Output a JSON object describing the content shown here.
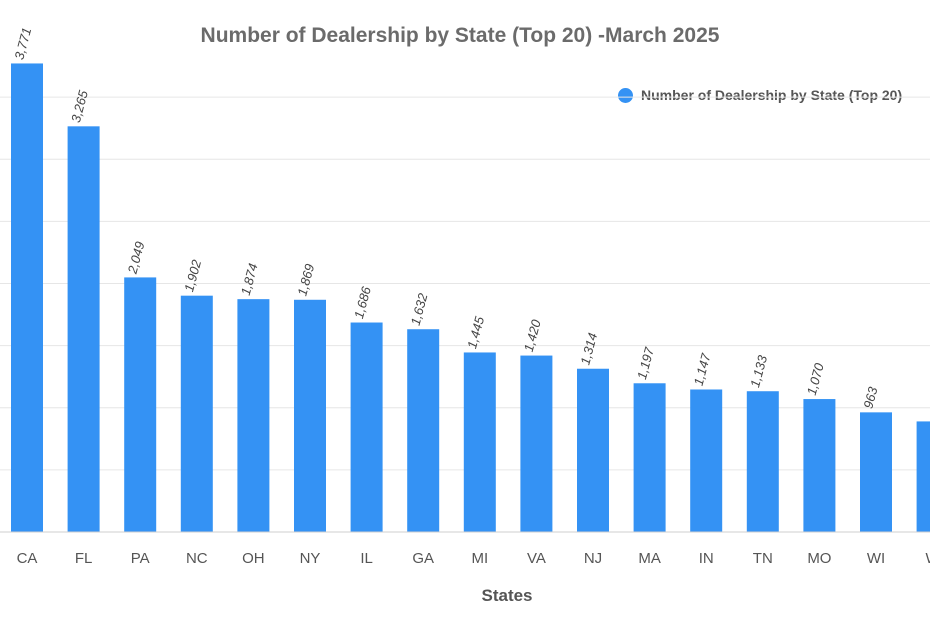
{
  "chart_data": {
    "type": "bar",
    "title": "Number of Dealership by State (Top 20) -March 2025",
    "xlabel": "States",
    "ylabel": "",
    "legend": {
      "placement": "top-right",
      "entries": [
        "Number of Dealership by State (Top 20)"
      ]
    },
    "grid": true,
    "ylim": [
      0,
      4000
    ],
    "color": "#3492f4",
    "series": [
      {
        "name": "Number of Dealership by State (Top 20)",
        "categories": [
          "CA",
          "FL",
          "PA",
          "NC",
          "OH",
          "NY",
          "IL",
          "GA",
          "MI",
          "VA",
          "NJ",
          "MA",
          "IN",
          "TN",
          "MO",
          "WI",
          "W"
        ],
        "values": [
          3771,
          3265,
          2049,
          1902,
          1874,
          1869,
          1686,
          1632,
          1445,
          1420,
          1314,
          1197,
          1147,
          1133,
          1070,
          963,
          890
        ],
        "labels": [
          "3,771",
          "3,265",
          "2,049",
          "1,902",
          "1,874",
          "1,869",
          "1,686",
          "1,632",
          "1,445",
          "1,420",
          "1,314",
          "1,197",
          "1,147",
          "1,133",
          "1,070",
          "963",
          ""
        ]
      }
    ]
  }
}
